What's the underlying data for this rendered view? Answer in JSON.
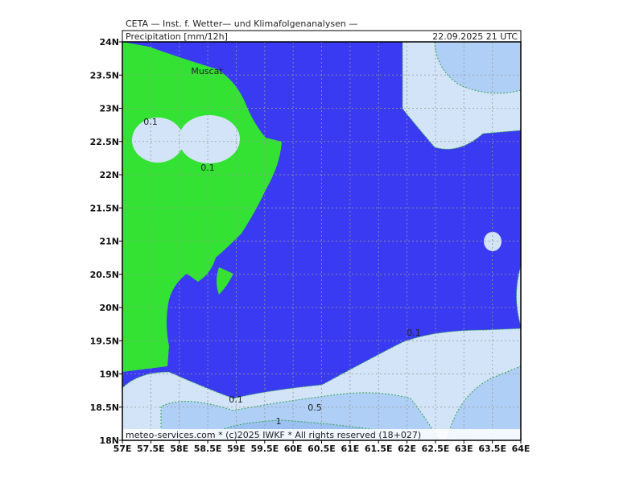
{
  "header": {
    "title": "CETA — Inst. f. Wetter— und Klimafolgenanalysen —",
    "product": "Precipitation [mm/12h]",
    "datetime": "22.09.2025 21 UTC"
  },
  "footer": "meteo-services.com * (c)2025 IWKF * All rights reserved (18+027)",
  "axes": {
    "lat_ticks": [
      {
        "value": 18,
        "label": "18N"
      },
      {
        "value": 18.5,
        "label": "18.5N"
      },
      {
        "value": 19,
        "label": "19N"
      },
      {
        "value": 19.5,
        "label": "19.5N"
      },
      {
        "value": 20,
        "label": "20N"
      },
      {
        "value": 20.5,
        "label": "20.5N"
      },
      {
        "value": 21,
        "label": "21N"
      },
      {
        "value": 21.5,
        "label": "21.5N"
      },
      {
        "value": 22,
        "label": "22N"
      },
      {
        "value": 22.5,
        "label": "22.5N"
      },
      {
        "value": 23,
        "label": "23N"
      },
      {
        "value": 23.5,
        "label": "23.5N"
      },
      {
        "value": 24,
        "label": "24N"
      }
    ],
    "lon_ticks": [
      {
        "value": 57,
        "label": "57E"
      },
      {
        "value": 57.5,
        "label": "57.5E"
      },
      {
        "value": 58,
        "label": "58E"
      },
      {
        "value": 58.5,
        "label": "58.5E"
      },
      {
        "value": 59,
        "label": "59E"
      },
      {
        "value": 59.5,
        "label": "59.5E"
      },
      {
        "value": 60,
        "label": "60E"
      },
      {
        "value": 60.5,
        "label": "60.5E"
      },
      {
        "value": 61,
        "label": "61E"
      },
      {
        "value": 61.5,
        "label": "61.5E"
      },
      {
        "value": 62,
        "label": "62E"
      },
      {
        "value": 62.5,
        "label": "62.5E"
      },
      {
        "value": 63,
        "label": "63E"
      },
      {
        "value": 63.5,
        "label": "63.5E"
      },
      {
        "value": 64,
        "label": "64E"
      }
    ]
  },
  "places": [
    "Muscat"
  ],
  "contour_labels": [
    "0.1",
    "0.1",
    "0.1",
    "0.1",
    "0.5",
    "1"
  ]
}
